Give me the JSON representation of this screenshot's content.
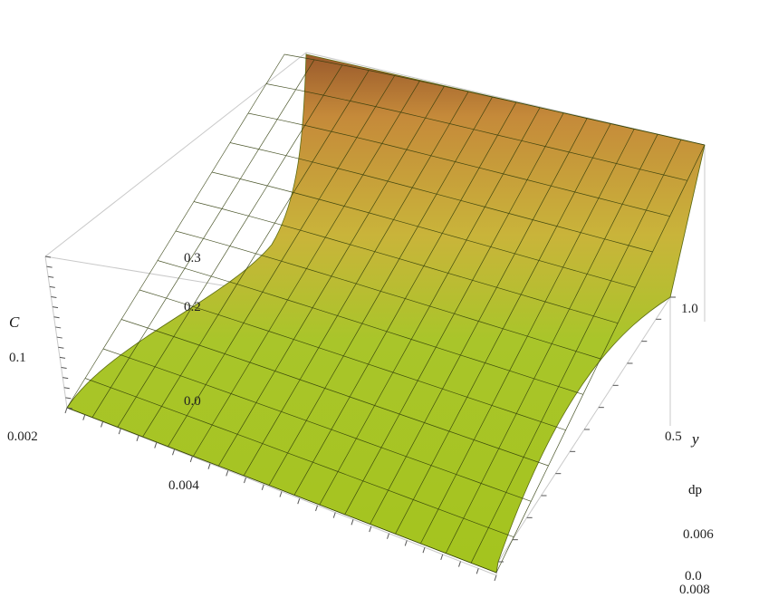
{
  "chart_data": {
    "type": "surface3d",
    "x_axis": {
      "label": "dp",
      "ticks": [
        "0.002",
        "0.004",
        "0.006",
        "0.008"
      ],
      "range": [
        0.002,
        0.008
      ]
    },
    "y_axis": {
      "label": "y",
      "ticks": [
        "0.0",
        "0.5",
        "1.0"
      ],
      "range": [
        0.0,
        1.0
      ]
    },
    "z_axis": {
      "label": "C",
      "ticks": [
        "0.0",
        "0.1",
        "0.2",
        "0.3"
      ],
      "range": [
        0.0,
        0.35
      ]
    },
    "mesh": {
      "n_dp": 17,
      "n_y": 12
    },
    "surface_samples": {
      "dp": [
        0.002,
        0.0025,
        0.003,
        0.0035,
        0.004,
        0.005,
        0.006,
        0.008
      ],
      "C_at_y1": [
        0.34,
        0.19,
        0.12,
        0.085,
        0.065,
        0.045,
        0.035,
        0.025
      ]
    },
    "colormap": [
      "#8a9d14",
      "#a9c61c",
      "#b7d22e",
      "#c9b43a",
      "#c98a3a",
      "#9a5a2c"
    ]
  }
}
